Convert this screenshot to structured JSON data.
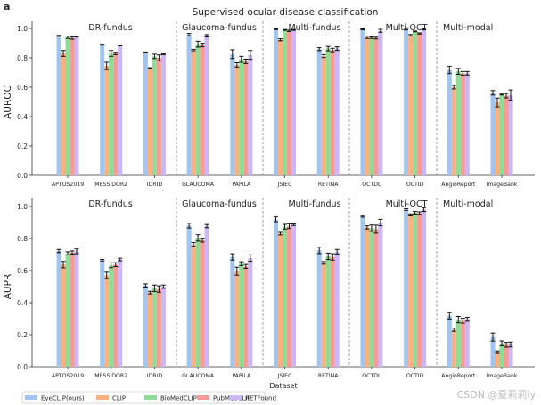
{
  "panel_label": "a",
  "watermark": "CSDN @夏莉莉iy",
  "chart_data": [
    {
      "type": "bar",
      "title": "Supervised ocular disease classification",
      "ylabel": "AUROC",
      "xlabel": "",
      "ylim": [
        0,
        1.0
      ],
      "yticks": [
        "0.0",
        "0.2",
        "0.4",
        "0.6",
        "0.8",
        "1.0"
      ],
      "categories": [
        "APTOS2019",
        "MESSIDOR2",
        "IDRID",
        "GLAUCOMA",
        "PAPILA",
        "JSIEC",
        "RETINA",
        "OCTDL",
        "OCTID",
        "AngioReport",
        "ImageBank"
      ],
      "groups": [
        {
          "label": "DR-fundus",
          "categories": [
            0,
            1,
            2
          ]
        },
        {
          "label": "Glaucoma-fundus",
          "categories": [
            3,
            4
          ]
        },
        {
          "label": "Multi-fundus",
          "categories": [
            5,
            6
          ]
        },
        {
          "label": "Multi-OCT",
          "categories": [
            7,
            8
          ]
        },
        {
          "label": "Multi-modal",
          "categories": [
            9,
            10
          ]
        }
      ],
      "series": [
        {
          "name": "EyeCLIP(ours)",
          "color": "#a1c4f0",
          "values": [
            0.95,
            0.89,
            0.837,
            0.958,
            0.825,
            0.995,
            0.859,
            0.994,
            0.995,
            0.718,
            0.562
          ],
          "err": [
            0.003,
            0.003,
            0.003,
            0.008,
            0.03,
            0.003,
            0.01,
            0.003,
            0.005,
            0.025,
            0.015
          ]
        },
        {
          "name": "CLIP",
          "color": "#fdb07f",
          "values": [
            0.83,
            0.745,
            0.73,
            0.853,
            0.752,
            0.923,
            0.812,
            0.94,
            0.954,
            0.6,
            0.496
          ],
          "err": [
            0.02,
            0.025,
            0.003,
            0.005,
            0.015,
            0.007,
            0.01,
            0.008,
            0.005,
            0.012,
            0.03
          ]
        },
        {
          "name": "BioMedCLIP",
          "color": "#8fdc95",
          "values": [
            0.94,
            0.83,
            0.81,
            0.893,
            0.79,
            0.99,
            0.863,
            0.937,
            0.98,
            0.708,
            0.55
          ],
          "err": [
            0.008,
            0.02,
            0.015,
            0.02,
            0.02,
            0.003,
            0.015,
            0.005,
            0.003,
            0.02,
            0.003
          ]
        },
        {
          "name": "PubMedCLIP",
          "color": "#f79b96",
          "values": [
            0.935,
            0.83,
            0.8,
            0.887,
            0.776,
            0.984,
            0.853,
            0.935,
            0.966,
            0.695,
            0.542
          ],
          "err": [
            0.008,
            0.008,
            0.02,
            0.012,
            0.015,
            0.005,
            0.012,
            0.006,
            0.004,
            0.012,
            0.015
          ]
        },
        {
          "name": "RETFound",
          "color": "#cdb6f5",
          "values": [
            0.945,
            0.885,
            0.825,
            0.95,
            0.82,
            0.99,
            0.863,
            0.984,
            0.994,
            0.695,
            0.546
          ],
          "err": [
            0.003,
            0.003,
            0.003,
            0.008,
            0.03,
            0.003,
            0.012,
            0.01,
            0.004,
            0.012,
            0.035
          ]
        }
      ],
      "legend": "none",
      "grid": false
    },
    {
      "type": "bar",
      "title": "",
      "ylabel": "AUPR",
      "xlabel": "Dataset",
      "ylim": [
        0,
        1.0
      ],
      "yticks": [
        "0.0",
        "0.2",
        "0.4",
        "0.6",
        "0.8",
        "1.0"
      ],
      "categories": [
        "APTOS2019",
        "MESSIDOR2",
        "IDRID",
        "GLAUCOMA",
        "PAPILA",
        "JSIEC",
        "RETINA",
        "OCTDL",
        "OCTID",
        "AngioReport",
        "ImageBank"
      ],
      "groups": [
        {
          "label": "DR-fundus",
          "categories": [
            0,
            1,
            2
          ]
        },
        {
          "label": "Glaucoma-fundus",
          "categories": [
            3,
            4
          ]
        },
        {
          "label": "Multi-fundus",
          "categories": [
            5,
            6
          ]
        },
        {
          "label": "Multi-OCT",
          "categories": [
            7,
            8
          ]
        },
        {
          "label": "Multi-modal",
          "categories": [
            9,
            10
          ]
        }
      ],
      "series": [
        {
          "name": "EyeCLIP(ours)",
          "color": "#a1c4f0",
          "values": [
            0.722,
            0.665,
            0.507,
            0.881,
            0.685,
            0.92,
            0.726,
            0.939,
            0.981,
            0.318,
            0.185
          ],
          "err": [
            0.01,
            0.005,
            0.01,
            0.015,
            0.02,
            0.015,
            0.02,
            0.005,
            0.005,
            0.02,
            0.025
          ]
        },
        {
          "name": "CLIP",
          "color": "#fdb07f",
          "values": [
            0.637,
            0.57,
            0.463,
            0.763,
            0.596,
            0.831,
            0.648,
            0.87,
            0.948,
            0.231,
            0.091
          ],
          "err": [
            0.02,
            0.02,
            0.008,
            0.012,
            0.025,
            0.008,
            0.008,
            0.01,
            0.006,
            0.01,
            0.008
          ]
        },
        {
          "name": "BioMedCLIP",
          "color": "#8fdc95",
          "values": [
            0.707,
            0.633,
            0.49,
            0.804,
            0.643,
            0.874,
            0.689,
            0.865,
            0.961,
            0.294,
            0.146
          ],
          "err": [
            0.01,
            0.015,
            0.02,
            0.02,
            0.012,
            0.015,
            0.02,
            0.02,
            0.008,
            0.02,
            0.015
          ]
        },
        {
          "name": "PubMedCLIP",
          "color": "#f79b96",
          "values": [
            0.713,
            0.637,
            0.485,
            0.79,
            0.626,
            0.878,
            0.685,
            0.859,
            0.959,
            0.287,
            0.137
          ],
          "err": [
            0.01,
            0.012,
            0.02,
            0.012,
            0.012,
            0.015,
            0.02,
            0.025,
            0.008,
            0.015,
            0.015
          ]
        },
        {
          "name": "RETFound",
          "color": "#cdb6f5",
          "values": [
            0.72,
            0.669,
            0.5,
            0.878,
            0.678,
            0.887,
            0.717,
            0.9,
            0.981,
            0.296,
            0.139
          ],
          "err": [
            0.015,
            0.008,
            0.01,
            0.01,
            0.02,
            0.005,
            0.015,
            0.02,
            0.012,
            0.012,
            0.015
          ]
        }
      ],
      "legend": "bottom",
      "grid": false
    }
  ]
}
